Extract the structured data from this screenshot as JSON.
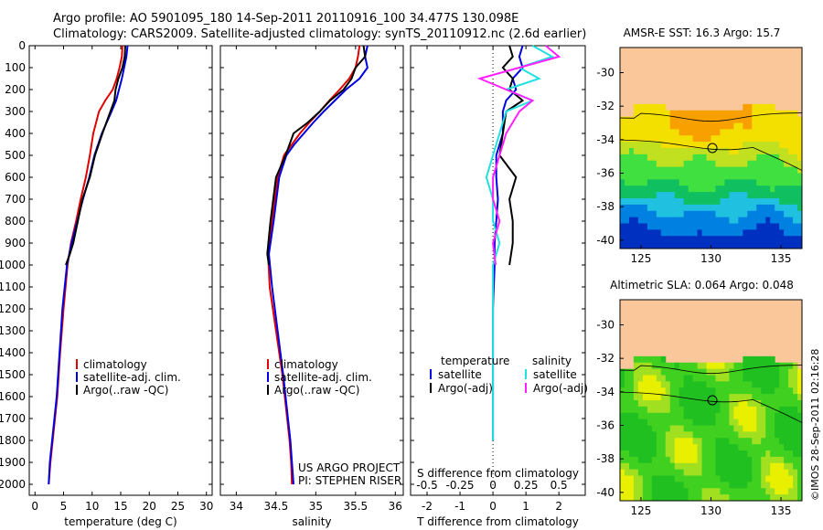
{
  "header": {
    "line1": "Argo profile: AO 5901095_180 14-Sep-2011 20110916_100 34.477S 130.098E",
    "line2": "Climatology: CARS2009. Satellite-adjusted climatology: synTS_20110912.nc (2.6d earlier)"
  },
  "footer": {
    "project": "US ARGO PROJECT",
    "pi": "PI: STEPHEN RISER",
    "imos": "©IMOS 28-Sep-2011 02:16:28"
  },
  "colors": {
    "climatology": "#e00000",
    "satellite": "#0000e0",
    "argo": "#000000",
    "satellite_s": "#20e0e0",
    "argo_s": "#ff20ff",
    "land": "#f9c79a"
  },
  "chart_data": [
    {
      "type": "line",
      "xlabel": "temperature (deg C)",
      "xlim": [
        -1,
        31
      ],
      "xticks": [
        0,
        5,
        10,
        15,
        20,
        25,
        30
      ],
      "ylim": [
        0,
        2050
      ],
      "yticks": [
        0,
        100,
        200,
        300,
        400,
        500,
        600,
        700,
        800,
        900,
        1000,
        1100,
        1200,
        1300,
        1400,
        1500,
        1600,
        1700,
        1800,
        1900,
        2000
      ],
      "legend": {
        "position": "bottom-left",
        "entries": [
          "climatology",
          "satellite-adj. clim.",
          "Argo(..raw -QC)"
        ]
      },
      "series": [
        {
          "name": "climatology",
          "color": "#e00000",
          "x": [
            15.3,
            15.2,
            14.8,
            14.3,
            13.6,
            12.3,
            11.2,
            10.2,
            9.6,
            8.9,
            8.0,
            7.2,
            6.3,
            5.7,
            5.0,
            4.4,
            3.9,
            3.5,
            3.1,
            2.7,
            2.4
          ],
          "y": [
            0,
            50,
            100,
            150,
            200,
            250,
            300,
            400,
            500,
            600,
            700,
            800,
            900,
            1000,
            1200,
            1400,
            1600,
            1700,
            1800,
            1900,
            2000
          ]
        },
        {
          "name": "satellite-adj. clim.",
          "color": "#0000e0",
          "x": [
            16.2,
            16.0,
            15.6,
            15.2,
            14.7,
            14.2,
            13.4,
            11.7,
            10.4,
            9.5,
            8.4,
            7.4,
            6.4,
            5.6,
            4.8,
            4.3,
            3.8,
            3.4,
            3.0,
            2.6,
            2.4
          ],
          "y": [
            0,
            50,
            100,
            150,
            200,
            250,
            300,
            400,
            500,
            600,
            700,
            800,
            900,
            1000,
            1200,
            1400,
            1600,
            1700,
            1800,
            1900,
            2000
          ]
        },
        {
          "name": "Argo(..raw -QC)",
          "color": "#000000",
          "x": [
            15.8,
            15.7,
            15.3,
            14.6,
            14.1,
            13.9,
            13.2,
            11.8,
            10.5,
            9.6,
            8.3,
            7.5,
            6.7,
            6.1,
            5.4
          ],
          "y": [
            0,
            50,
            100,
            150,
            200,
            250,
            300,
            400,
            500,
            600,
            700,
            800,
            900,
            950,
            1000
          ]
        }
      ]
    },
    {
      "type": "line",
      "xlabel": "salinity",
      "xlim": [
        33.8,
        36.1
      ],
      "xticks": [
        34,
        34.5,
        35,
        35.5,
        36
      ],
      "ylim": [
        0,
        2050
      ],
      "legend": {
        "position": "bottom-left",
        "entries": [
          "climatology",
          "satellite-adj. clim.",
          "Argo(..raw -QC)"
        ]
      },
      "series": [
        {
          "name": "climatology",
          "color": "#e00000",
          "x": [
            35.55,
            35.53,
            35.5,
            35.42,
            35.3,
            35.17,
            35.05,
            34.92,
            34.8,
            34.7,
            34.6,
            34.52,
            34.45,
            34.4,
            34.42,
            34.5,
            34.58,
            34.64,
            34.67,
            34.69,
            34.7
          ],
          "y": [
            0,
            50,
            100,
            150,
            200,
            250,
            300,
            350,
            400,
            450,
            500,
            600,
            800,
            950,
            1100,
            1300,
            1500,
            1700,
            1800,
            1900,
            2000
          ]
        },
        {
          "name": "satellite-adj. clim.",
          "color": "#0000e0",
          "x": [
            35.65,
            35.62,
            35.65,
            35.55,
            35.38,
            35.24,
            35.1,
            34.97,
            34.85,
            34.73,
            34.63,
            34.54,
            34.47,
            34.41,
            34.45,
            34.52,
            34.59,
            34.65,
            34.68,
            34.7,
            34.72
          ],
          "y": [
            0,
            50,
            100,
            150,
            200,
            250,
            300,
            350,
            400,
            450,
            500,
            600,
            800,
            950,
            1100,
            1300,
            1500,
            1700,
            1800,
            1900,
            2000
          ]
        },
        {
          "name": "Argo(..raw -QC)",
          "color": "#000000",
          "x": [
            35.6,
            35.62,
            35.5,
            35.45,
            35.35,
            35.18,
            35.05,
            34.9,
            34.72,
            34.62,
            34.5,
            34.43,
            34.39,
            34.41
          ],
          "y": [
            0,
            50,
            100,
            150,
            200,
            250,
            300,
            350,
            400,
            500,
            600,
            800,
            950,
            1000
          ]
        }
      ]
    },
    {
      "type": "line",
      "xlabel": "T difference from climatology",
      "x2label": "S difference from climatology",
      "xlim": [
        -2.5,
        2.8
      ],
      "xticks": [
        -2,
        -1,
        0,
        1,
        2
      ],
      "x2ticks": [
        -0.5,
        -0.25,
        0,
        0.25,
        0.5
      ],
      "x2tick_labels": [
        "-0.5",
        "-0.25",
        "0",
        "0.25",
        "0.5"
      ],
      "ylim": [
        0,
        2050
      ],
      "legend": {
        "position": "bottom",
        "temperature_title": "temperature",
        "salinity_title": "salinity",
        "entries": [
          "satellite",
          "Argo(-adj)",
          "satellite",
          "Argo(-adj)"
        ]
      },
      "series": [
        {
          "name": "temperature satellite",
          "color": "#0000e0",
          "x": [
            0.9,
            0.8,
            0.9,
            0.6,
            0.7,
            0.4,
            0.3,
            0.3,
            0.1,
            0.1,
            0.15,
            0.1,
            0.05,
            0.05,
            0.0,
            0.0,
            0.0,
            0.0,
            0.0
          ],
          "y": [
            0,
            50,
            100,
            150,
            200,
            250,
            300,
            400,
            500,
            600,
            700,
            800,
            900,
            1000,
            1200,
            1400,
            1600,
            1700,
            1800
          ]
        },
        {
          "name": "temperature Argo(-adj)",
          "color": "#000000",
          "x": [
            0.5,
            0.6,
            0.3,
            0.6,
            0.5,
            0.9,
            0.4,
            0.3,
            0.2,
            0.7,
            0.5,
            0.6,
            0.6,
            0.5
          ],
          "y": [
            0,
            50,
            100,
            150,
            200,
            250,
            300,
            400,
            500,
            600,
            700,
            800,
            900,
            1000
          ]
        },
        {
          "name": "salinity satellite",
          "color": "#20e0e0",
          "x": [
            0.3,
            0.45,
            0.2,
            0.35,
            0.1,
            0.3,
            0.1,
            0.05,
            0.0,
            -0.05,
            0.0,
            0.0,
            0.05,
            0.0,
            0.0,
            0.0,
            0.0,
            0.0,
            0.0
          ],
          "y": [
            0,
            50,
            100,
            150,
            200,
            250,
            300,
            400,
            500,
            600,
            700,
            800,
            900,
            1000,
            1200,
            1400,
            1600,
            1700,
            1800
          ]
        },
        {
          "name": "salinity Argo(-adj)",
          "color": "#ff20ff",
          "x": [
            0.4,
            0.5,
            0.2,
            -0.1,
            0.1,
            0.3,
            0.2,
            0.1,
            0.05,
            0.0,
            0.0,
            0.05,
            0.0,
            0.02
          ],
          "y": [
            0,
            50,
            100,
            150,
            200,
            250,
            300,
            400,
            500,
            600,
            700,
            800,
            900,
            1000
          ]
        }
      ]
    },
    {
      "type": "heatmap",
      "title": "AMSR-E SST: 16.3  Argo: 15.7",
      "xlim": [
        123.5,
        136.5
      ],
      "xticks": [
        125,
        130,
        135
      ],
      "ylim": [
        -40.5,
        -28.5
      ],
      "yticks": [
        -30,
        -32,
        -34,
        -36,
        -38,
        -40
      ],
      "marker": {
        "lon": 130.1,
        "lat": -34.5
      }
    },
    {
      "type": "heatmap",
      "title": "Altimetric SLA: 0.064  Argo: 0.048",
      "xlim": [
        123.5,
        136.5
      ],
      "xticks": [
        125,
        130,
        135
      ],
      "ylim": [
        -40.5,
        -28.5
      ],
      "yticks": [
        -30,
        -32,
        -34,
        -36,
        -38,
        -40
      ],
      "marker": {
        "lon": 130.1,
        "lat": -34.5
      }
    }
  ]
}
